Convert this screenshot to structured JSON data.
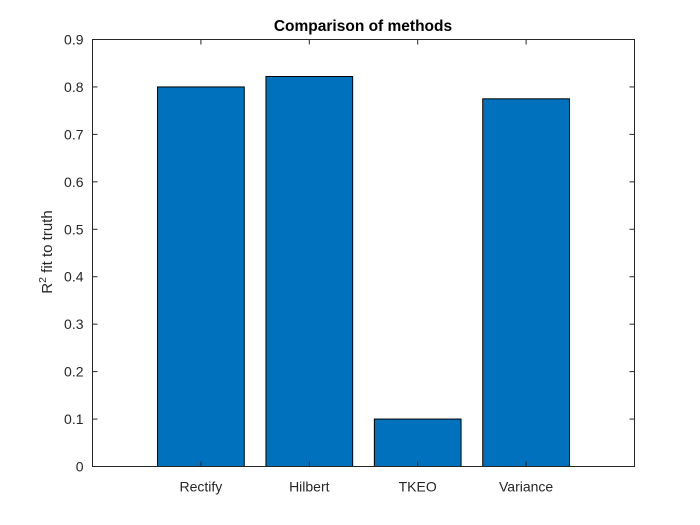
{
  "chart_data": {
    "type": "bar",
    "title": "Comparison of methods",
    "xlabel": "",
    "ylabel": {
      "prefix": "R",
      "superscript": "2",
      "suffix": " fit to truth"
    },
    "categories": [
      "Rectify",
      "Hilbert",
      "TKEO",
      "Variance"
    ],
    "values": [
      0.8,
      0.822,
      0.1,
      0.775
    ],
    "ylim": [
      0,
      0.9
    ],
    "xlim": [
      0,
      5
    ],
    "yticks": [
      0,
      0.1,
      0.2,
      0.3,
      0.4,
      0.5,
      0.6,
      0.7,
      0.8,
      0.9
    ],
    "ytick_labels": [
      "0",
      "0.1",
      "0.2",
      "0.3",
      "0.4",
      "0.5",
      "0.6",
      "0.7",
      "0.8",
      "0.9"
    ],
    "bar_color": "#0072BD",
    "grid": false,
    "box": true
  }
}
